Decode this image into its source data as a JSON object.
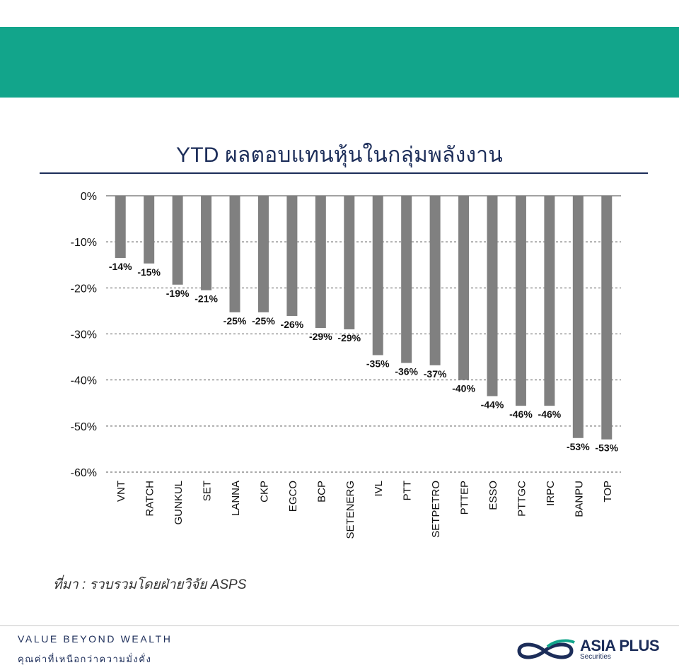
{
  "header": {
    "banner_color": "#12a58b"
  },
  "chart_data": {
    "type": "bar",
    "title": "YTD ผลตอบแทนหุ้นในกลุ่มพลังงาน",
    "xlabel": "",
    "ylabel": "",
    "ylim": [
      -60,
      0
    ],
    "yticks": [
      "0%",
      "-10%",
      "-20%",
      "-30%",
      "-40%",
      "-50%",
      "-60%"
    ],
    "grid": "horizontal dashed",
    "bar_color": "#808080",
    "categories": [
      "VNT",
      "RATCH",
      "GUNKUL",
      "SET",
      "LANNA",
      "CKP",
      "EGCO",
      "BCP",
      "SETENERG",
      "IVL",
      "PTT",
      "SETPETRO",
      "PTTEP",
      "ESSO",
      "PTTGC",
      "IRPC",
      "BANPU",
      "TOP"
    ],
    "values": [
      -13.5,
      -14.7,
      -19.3,
      -20.5,
      -25.3,
      -25.3,
      -26.1,
      -28.7,
      -29.0,
      -34.6,
      -36.3,
      -36.8,
      -40.0,
      -43.5,
      -45.6,
      -45.6,
      -52.6,
      -52.9
    ],
    "data_labels": [
      "-14%",
      "-15%",
      "-19%",
      "-21%",
      "-25%",
      "-25%",
      "-26%",
      "-29%",
      "-29%",
      "-35%",
      "-36%",
      "-37%",
      "-40%",
      "-44%",
      "-46%",
      "-46%",
      "-53%",
      "-53%"
    ]
  },
  "source_note": "ที่มา : รวบรวมโดยฝ่ายวิจัย ASPS",
  "footer": {
    "tagline_en": "VALUE BEYOND WEALTH",
    "tagline_th": "คุณค่าที่เหนือกว่าความมั่งคั่ง",
    "brand_name": "ASIA PLUS",
    "brand_sub": "Securities",
    "brand_color": "#1c2d59",
    "accent_color": "#12a58b"
  }
}
